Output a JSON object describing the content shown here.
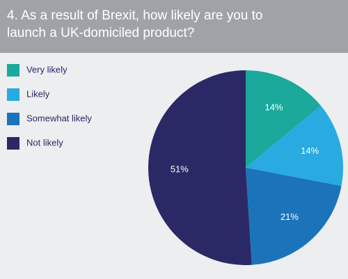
{
  "chart_data": {
    "type": "pie",
    "title": "4. As a result of Brexit, how likely are you to launch a UK-domiciled product?",
    "categories": [
      "Very likely",
      "Likely",
      "Somewhat likely",
      "Not likely"
    ],
    "values": [
      14,
      14,
      21,
      51
    ],
    "value_labels": [
      "14%",
      "14%",
      "21%",
      "51%"
    ],
    "colors": [
      "#1aa99a",
      "#29aae1",
      "#1b74ba",
      "#2a2966"
    ],
    "legend": "left"
  }
}
